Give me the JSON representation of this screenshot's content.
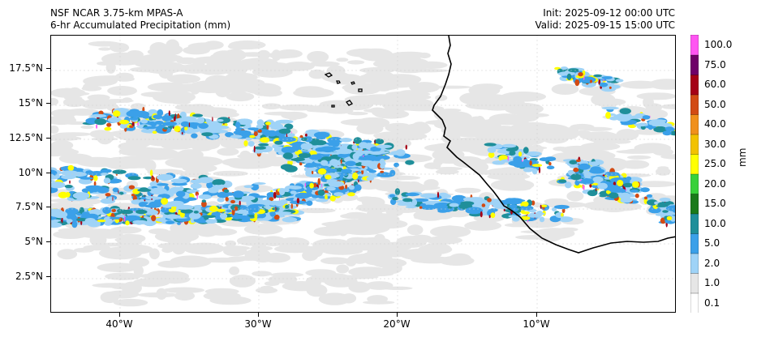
{
  "header": {
    "model": "NSF NCAR 3.75-km MPAS-A",
    "field": "6-hr Accumulated Precipitation (mm)",
    "init": "Init: 2025-09-12 00:00 UTC",
    "valid": "Valid: 2025-09-15 15:00 UTC"
  },
  "map": {
    "lat_labels": [
      "2.5°N",
      "5°N",
      "7.5°N",
      "10°N",
      "12.5°N",
      "15°N",
      "17.5°N"
    ],
    "lon_labels": [
      "40°W",
      "30°W",
      "20°W",
      "10°W"
    ],
    "domain": {
      "lon_min": -45,
      "lon_max": 0,
      "lat_min": 0,
      "lat_max": 20
    }
  },
  "colorbar": {
    "unit": "mm",
    "levels": [
      "0.1",
      "1.0",
      "2.0",
      "5.0",
      "10.0",
      "15.0",
      "20.0",
      "25.0",
      "30.0",
      "40.0",
      "50.0",
      "60.0",
      "75.0",
      "100.0"
    ],
    "colors": [
      "#ffffff",
      "#e6e6e6",
      "#9fd3f7",
      "#3ba0e9",
      "#1f8f9a",
      "#1a7a1a",
      "#38d13a",
      "#ffff00",
      "#f2c200",
      "#f0901c",
      "#d24b14",
      "#a50016",
      "#6f0069",
      "#ff55f2"
    ]
  },
  "precip": {
    "light": "#e6e6e6",
    "c1": "#9fd3f7",
    "c2": "#3ba0e9",
    "c3": "#1f8f9a",
    "c4": "#38d13a",
    "c5": "#ffff00",
    "c6": "#d24b14",
    "c7": "#a50016",
    "c8": "#ff55f2"
  }
}
